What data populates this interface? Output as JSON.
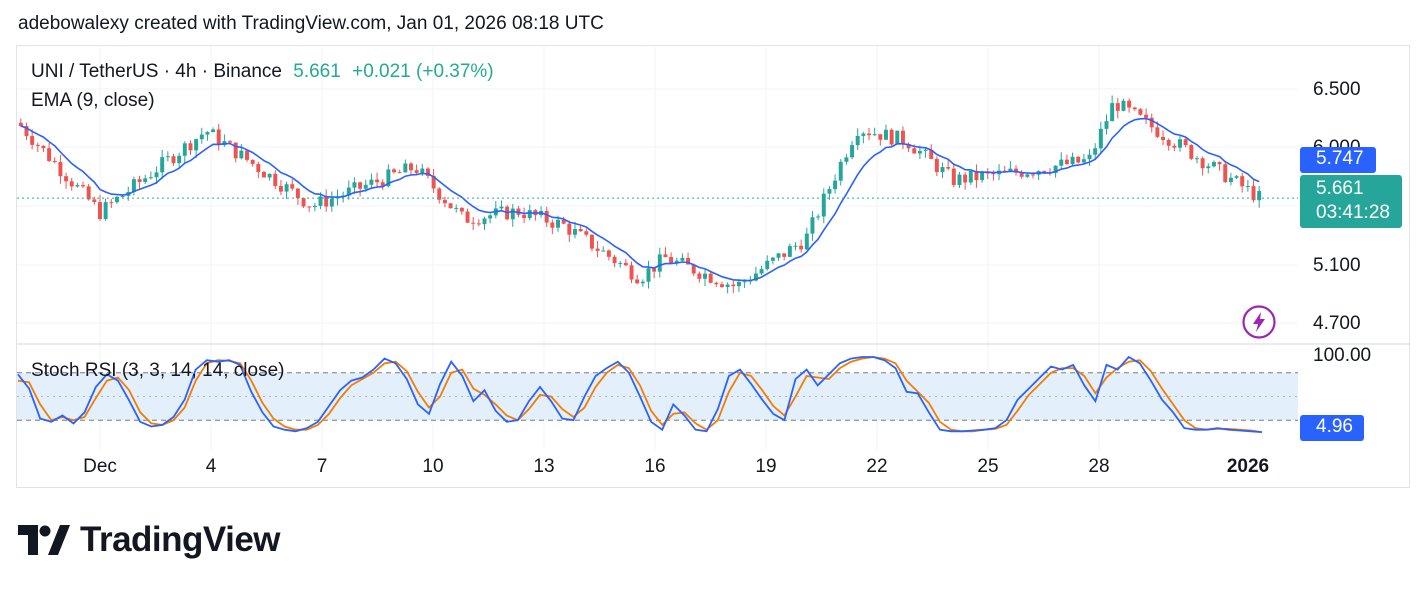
{
  "attribution": "adebowalexy created with TradingView.com, Jan 01, 2026 08:18 UTC",
  "legend": {
    "symbol": "UNI / TetherUS · 4h · Binance",
    "price": "5.661",
    "change": "+0.021 (+0.37%)",
    "ema_label": "EMA (9, close)",
    "stoch_label": "Stoch RSI (3, 3, 14, 14, close)"
  },
  "price_scale": {
    "ticks": [
      "6.500",
      "6.000",
      "5.100",
      "4.700"
    ],
    "ema_value": "5.747",
    "last_price": "5.661",
    "countdown": "03:41:28"
  },
  "stoch_scale": {
    "top_label": "100.00",
    "current_value": "4.96"
  },
  "time_axis": [
    "Dec",
    "4",
    "7",
    "10",
    "13",
    "16",
    "19",
    "22",
    "25",
    "28",
    "2026"
  ],
  "logo": {
    "wordmark": "TradingView"
  },
  "colors": {
    "up": "#26a69a",
    "down": "#ef5350",
    "ema": "#2962ff",
    "stoch_k": "#2962ff",
    "stoch_d": "#f57c00",
    "band": "#e3f0fb",
    "last_price_bg": "#26a69a",
    "ema_pill_bg": "#2962ff"
  },
  "chart_data": [
    {
      "type": "candlestick",
      "timeframe": "4h",
      "ylim": [
        4.6,
        6.65
      ],
      "price_path": [
        [
          "Dec",
          6.24
        ],
        [
          "Dec",
          5.55
        ],
        [
          "4",
          6.18
        ],
        [
          "7",
          5.6
        ],
        [
          "10",
          5.9
        ],
        [
          "10",
          5.5
        ],
        [
          "13",
          5.56
        ],
        [
          "13",
          5.45
        ],
        [
          "16",
          5.05
        ],
        [
          "16",
          5.2
        ],
        [
          "19",
          4.98
        ],
        [
          "19",
          5.35
        ],
        [
          "22",
          6.2
        ],
        [
          "22",
          6.1
        ],
        [
          "25",
          5.8
        ],
        [
          "25",
          5.85
        ],
        [
          "28",
          5.95
        ],
        [
          "28",
          6.4
        ],
        [
          "2026",
          5.66
        ]
      ],
      "ema": {
        "period": 9,
        "source": "close",
        "last": 5.747
      },
      "last_price": 5.661,
      "x_ticks": [
        "Dec",
        "4",
        "7",
        "10",
        "13",
        "16",
        "19",
        "22",
        "25",
        "28",
        "2026"
      ]
    },
    {
      "type": "line",
      "title": "Stoch RSI (3, 3, 14, 14, close)",
      "ylim": [
        0,
        100
      ],
      "band": [
        20,
        80
      ],
      "series": [
        {
          "name": "K",
          "values": [
            78,
            60,
            22,
            18,
            26,
            16,
            30,
            62,
            78,
            70,
            45,
            18,
            12,
            14,
            24,
            46,
            84,
            96,
            94,
            96,
            90,
            56,
            30,
            12,
            8,
            6,
            10,
            18,
            38,
            58,
            70,
            74,
            84,
            98,
            92,
            72,
            40,
            28,
            66,
            94,
            76,
            44,
            58,
            32,
            18,
            20,
            44,
            62,
            44,
            22,
            20,
            50,
            76,
            86,
            94,
            80,
            50,
            18,
            8,
            40,
            26,
            8,
            6,
            34,
            76,
            84,
            66,
            46,
            28,
            20,
            72,
            84,
            64,
            78,
            92,
            98,
            100,
            100,
            96,
            86,
            56,
            54,
            30,
            8,
            6,
            6,
            7,
            8,
            10,
            20,
            46,
            60,
            74,
            88,
            84,
            90,
            64,
            44,
            90,
            84,
            100,
            92,
            70,
            46,
            30,
            10,
            8,
            8,
            10,
            8,
            7,
            6,
            5
          ]
        },
        {
          "name": "D",
          "values": [
            70,
            68,
            40,
            20,
            24,
            20,
            24,
            48,
            70,
            74,
            58,
            30,
            16,
            14,
            20,
            36,
            70,
            92,
            96,
            95,
            92,
            70,
            42,
            22,
            12,
            8,
            8,
            14,
            28,
            48,
            64,
            72,
            80,
            92,
            94,
            82,
            56,
            36,
            50,
            80,
            84,
            60,
            52,
            40,
            26,
            20,
            34,
            52,
            50,
            34,
            24,
            36,
            62,
            80,
            90,
            86,
            64,
            32,
            14,
            28,
            30,
            16,
            8,
            20,
            56,
            80,
            76,
            58,
            38,
            26,
            50,
            76,
            74,
            72,
            86,
            94,
            98,
            100,
            98,
            92,
            70,
            56,
            42,
            18,
            8,
            6,
            6,
            8,
            9,
            14,
            32,
            52,
            66,
            80,
            86,
            86,
            76,
            54,
            74,
            86,
            94,
            96,
            82,
            60,
            40,
            20,
            10,
            8,
            9,
            9,
            8,
            7,
            5
          ]
        }
      ],
      "current": 4.96
    }
  ]
}
